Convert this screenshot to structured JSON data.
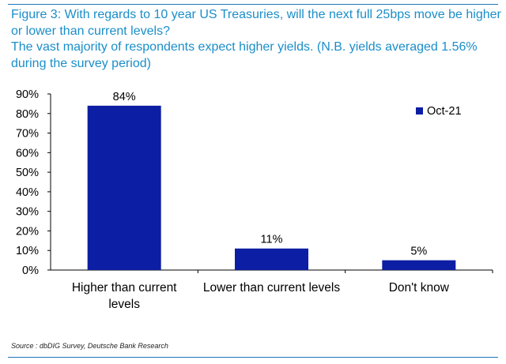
{
  "figure": {
    "title_line1": "Figure 3: With regards to 10 year US Treasuries, will the next full 25bps move be higher or lower than current levels?",
    "title_line2": "The vast majority of respondents expect higher yields. (N.B. yields averaged 1.56% during the survey period)",
    "source": "Source : dbDIG Survey, Deutsche Bank Research"
  },
  "chart_data": {
    "type": "bar",
    "categories": [
      "Higher than current levels",
      "Lower than current levels",
      "Don't know"
    ],
    "category_lines": [
      [
        "Higher than current",
        "levels"
      ],
      [
        "Lower than current levels"
      ],
      [
        "Don't know"
      ]
    ],
    "series": [
      {
        "name": "Oct-21",
        "values": [
          84,
          11,
          5
        ],
        "color": "#0c1ea3"
      }
    ],
    "data_labels": [
      "84%",
      "11%",
      "5%"
    ],
    "ylim": [
      0,
      90
    ],
    "yticks": [
      0,
      10,
      20,
      30,
      40,
      50,
      60,
      70,
      80,
      90
    ],
    "ytick_labels": [
      "0%",
      "10%",
      "20%",
      "30%",
      "40%",
      "50%",
      "60%",
      "70%",
      "80%",
      "90%"
    ],
    "legend_position": "top-right",
    "grid": false
  }
}
